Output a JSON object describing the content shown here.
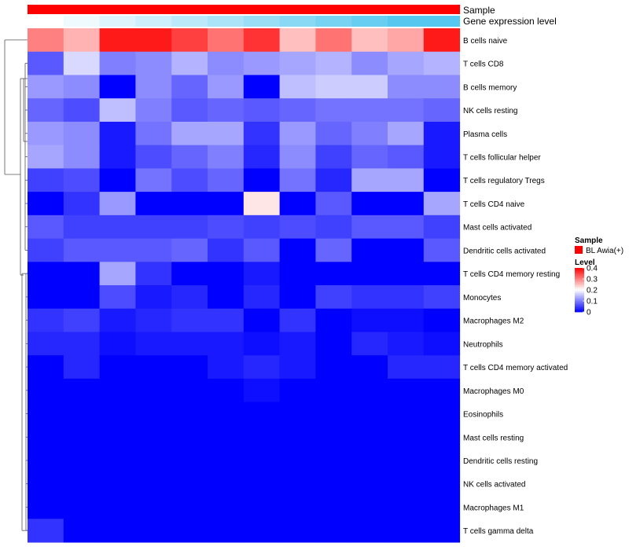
{
  "chart_data": {
    "type": "heatmap",
    "annotation_tracks": [
      "Sample",
      "Gene expression level"
    ],
    "rows": [
      "B cells naive",
      "T cells CD8",
      "B cells memory",
      "NK cells resting",
      "Plasma cells",
      "T cells follicular helper",
      "T cells regulatory  Tregs",
      "T cells CD4 naive",
      "Mast cells activated",
      "Dendritic cells activated",
      "T cells CD4 memory resting",
      "Monocytes",
      "Macrophages M2",
      "Neutrophils",
      "T cells CD4 memory activated",
      "Macrophages M0",
      "Eosinophils",
      "Mast cells resting",
      "Dendritic cells resting",
      "NK cells activated",
      "Macrophages M1",
      "T cells gamma delta"
    ],
    "values": [
      [
        0.3,
        0.26,
        0.38,
        0.38,
        0.35,
        0.31,
        0.36,
        0.25,
        0.31,
        0.25,
        0.27,
        0.38
      ],
      [
        0.07,
        0.17,
        0.1,
        0.11,
        0.14,
        0.11,
        0.12,
        0.13,
        0.14,
        0.11,
        0.13,
        0.14
      ],
      [
        0.12,
        0.11,
        0.0,
        0.11,
        0.08,
        0.12,
        0.0,
        0.15,
        0.16,
        0.16,
        0.11,
        0.11
      ],
      [
        0.08,
        0.06,
        0.15,
        0.1,
        0.07,
        0.08,
        0.07,
        0.08,
        0.09,
        0.09,
        0.09,
        0.08
      ],
      [
        0.12,
        0.11,
        0.02,
        0.09,
        0.13,
        0.13,
        0.04,
        0.12,
        0.08,
        0.1,
        0.13,
        0.02
      ],
      [
        0.13,
        0.11,
        0.02,
        0.06,
        0.08,
        0.1,
        0.03,
        0.11,
        0.05,
        0.08,
        0.07,
        0.02
      ],
      [
        0.05,
        0.06,
        0.0,
        0.09,
        0.06,
        0.08,
        0.0,
        0.09,
        0.03,
        0.13,
        0.13,
        0.0
      ],
      [
        0.0,
        0.04,
        0.12,
        0.0,
        0.0,
        0.0,
        0.22,
        0.0,
        0.07,
        0.0,
        0.0,
        0.13
      ],
      [
        0.07,
        0.05,
        0.05,
        0.05,
        0.05,
        0.06,
        0.05,
        0.06,
        0.05,
        0.07,
        0.07,
        0.05
      ],
      [
        0.05,
        0.07,
        0.07,
        0.07,
        0.08,
        0.04,
        0.07,
        0.0,
        0.08,
        0.0,
        0.0,
        0.07
      ],
      [
        0.0,
        0.0,
        0.13,
        0.04,
        0.0,
        0.0,
        0.02,
        0.0,
        0.0,
        0.0,
        0.0,
        0.0
      ],
      [
        0.0,
        0.0,
        0.06,
        0.02,
        0.03,
        0.0,
        0.03,
        0.0,
        0.05,
        0.04,
        0.04,
        0.05
      ],
      [
        0.04,
        0.05,
        0.02,
        0.03,
        0.04,
        0.04,
        0.0,
        0.04,
        0.0,
        0.01,
        0.01,
        0.0
      ],
      [
        0.03,
        0.03,
        0.01,
        0.02,
        0.02,
        0.02,
        0.01,
        0.02,
        0.0,
        0.03,
        0.02,
        0.01
      ],
      [
        0.0,
        0.03,
        0.0,
        0.0,
        0.0,
        0.02,
        0.03,
        0.02,
        0.0,
        0.0,
        0.03,
        0.03
      ],
      [
        0.0,
        0.0,
        0.0,
        0.0,
        0.0,
        0.0,
        0.01,
        0.0,
        0.0,
        0.0,
        0.0,
        0.0
      ],
      [
        0.0,
        0.0,
        0.0,
        0.0,
        0.0,
        0.0,
        0.0,
        0.0,
        0.0,
        0.0,
        0.0,
        0.0
      ],
      [
        0.0,
        0.0,
        0.0,
        0.0,
        0.0,
        0.0,
        0.0,
        0.0,
        0.0,
        0.0,
        0.0,
        0.0
      ],
      [
        0.0,
        0.0,
        0.0,
        0.0,
        0.0,
        0.0,
        0.0,
        0.0,
        0.0,
        0.0,
        0.0,
        0.0
      ],
      [
        0.0,
        0.0,
        0.0,
        0.0,
        0.0,
        0.0,
        0.0,
        0.0,
        0.0,
        0.0,
        0.0,
        0.0
      ],
      [
        0.0,
        0.0,
        0.0,
        0.0,
        0.0,
        0.0,
        0.0,
        0.0,
        0.0,
        0.0,
        0.0,
        0.0
      ],
      [
        0.04,
        0.0,
        0.0,
        0.0,
        0.0,
        0.0,
        0.0,
        0.0,
        0.0,
        0.0,
        0.0,
        0.0
      ]
    ],
    "expression_level": [
      0.0,
      0.1,
      0.2,
      0.3,
      0.4,
      0.5,
      0.6,
      0.7,
      0.8,
      0.9,
      1.0,
      1.0
    ],
    "color_scale": {
      "min_color": "#0000ff",
      "mid_color": "#ffffff",
      "max_color": "#ff0000",
      "range": [
        0,
        0.4
      ]
    },
    "sample_color": "#ff0000",
    "expression_colors": [
      "#ffffff",
      "#56c8f0"
    ],
    "legend": {
      "sample_title": "Sample",
      "sample_label": "BL Awia(+)",
      "level_title": "Level",
      "level_ticks": [
        "0.4",
        "0.3",
        "0.2",
        "0.1",
        "0"
      ],
      "level_tick_values": [
        0.4,
        0.3,
        0.2,
        0.1,
        0
      ],
      "position": "right"
    }
  }
}
